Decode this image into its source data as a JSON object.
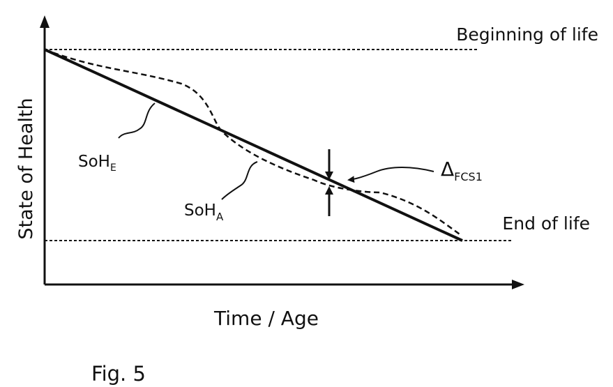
{
  "figure": {
    "caption": "Fig. 5",
    "y_axis_label": "State of Health",
    "x_axis_label": "Time / Age",
    "reference_lines": {
      "top": "Beginning of life",
      "bottom": "End of life"
    },
    "curves": {
      "expected": {
        "base": "SoH",
        "subscript": "E"
      },
      "actual": {
        "base": "SoH",
        "subscript": "A"
      }
    },
    "deviation": {
      "base": "Δ",
      "subscript": "FCS1"
    },
    "colors": {
      "ink": "#111111",
      "background": "#ffffff"
    }
  }
}
